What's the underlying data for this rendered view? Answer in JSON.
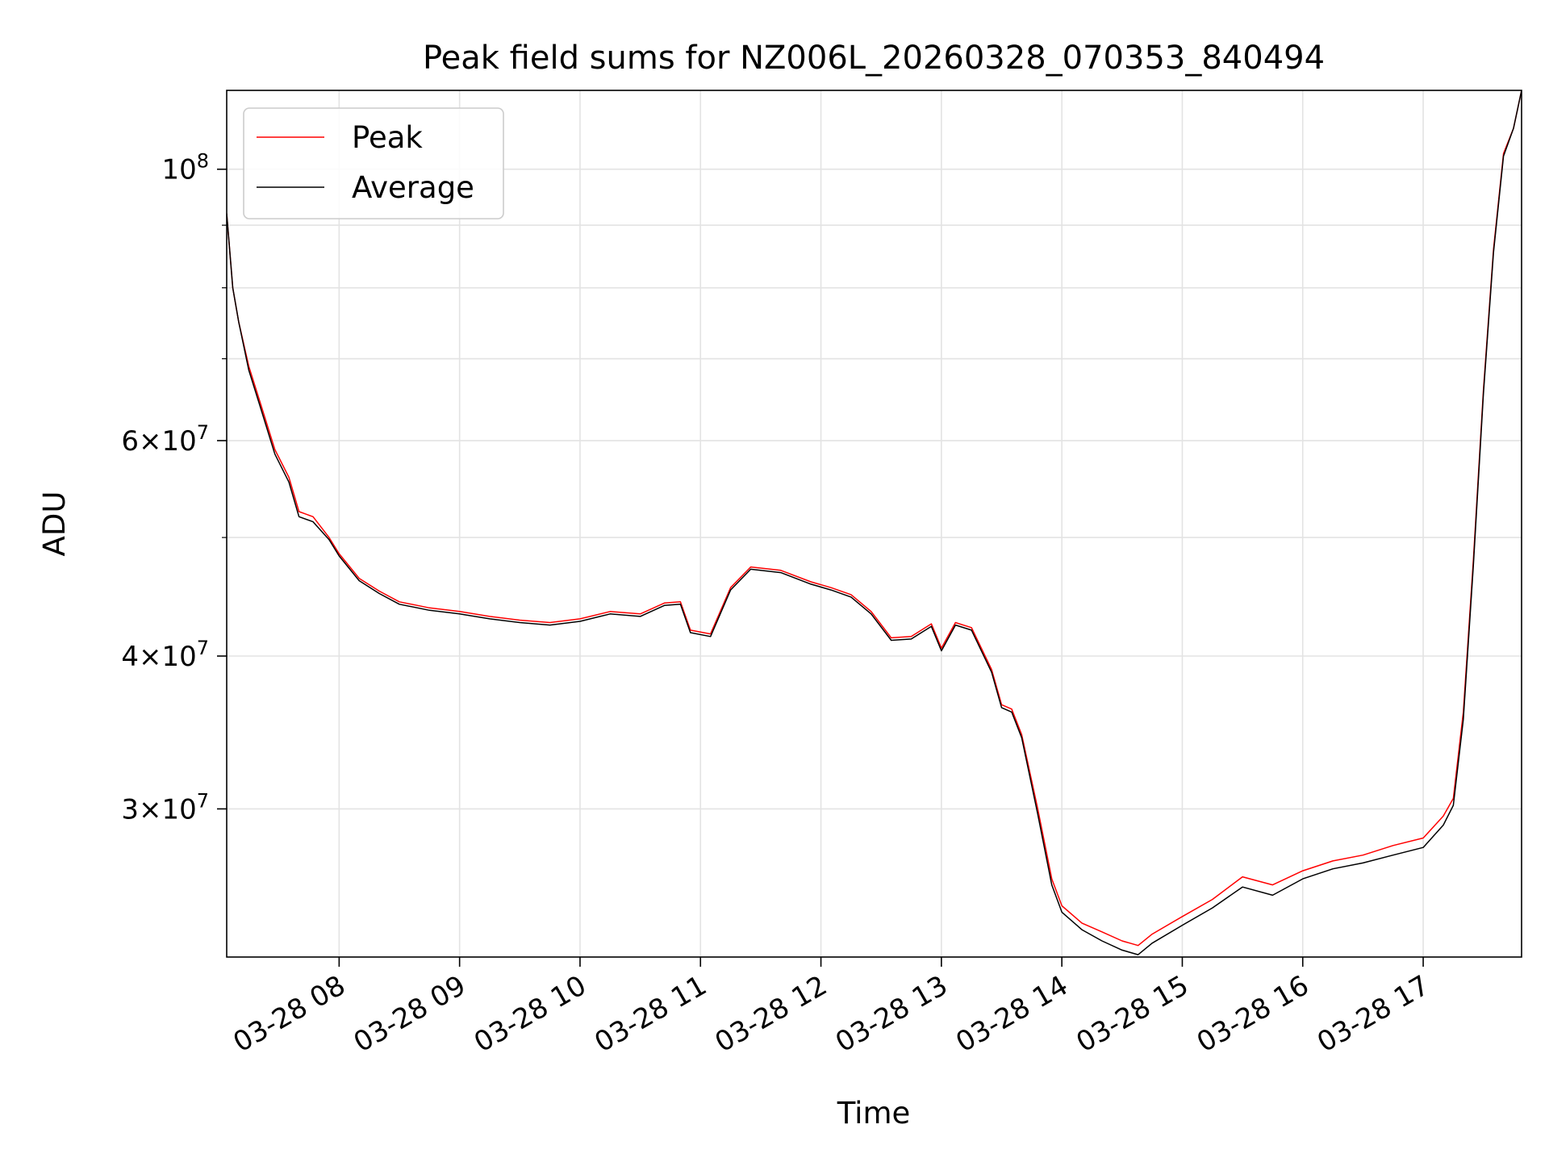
{
  "chart_data": {
    "type": "line",
    "title": "Peak field sums for NZ006L_20260328_070353_840494",
    "xlabel": "Time",
    "ylabel": "ADU",
    "yscale": "log",
    "grid": true,
    "legend_position": "top-left",
    "xlim": [
      "2026-03-28 07:04",
      "2026-03-28 17:49"
    ],
    "ylim": [
      22700000,
      116000000
    ],
    "x_ticks": [
      {
        "value": "2026-03-28 08:00",
        "label": "03-28 08"
      },
      {
        "value": "2026-03-28 09:00",
        "label": "03-28 09"
      },
      {
        "value": "2026-03-28 10:00",
        "label": "03-28 10"
      },
      {
        "value": "2026-03-28 11:00",
        "label": "03-28 11"
      },
      {
        "value": "2026-03-28 12:00",
        "label": "03-28 12"
      },
      {
        "value": "2026-03-28 13:00",
        "label": "03-28 13"
      },
      {
        "value": "2026-03-28 14:00",
        "label": "03-28 14"
      },
      {
        "value": "2026-03-28 15:00",
        "label": "03-28 15"
      },
      {
        "value": "2026-03-28 16:00",
        "label": "03-28 16"
      },
      {
        "value": "2026-03-28 17:00",
        "label": "03-28 17"
      }
    ],
    "y_ticks": [
      {
        "value": 30000000,
        "base": "3",
        "exp": "7"
      },
      {
        "value": 40000000,
        "base": "4",
        "exp": "7"
      },
      {
        "value": 60000000,
        "base": "6",
        "exp": "7"
      },
      {
        "value": 100000000,
        "base": "10",
        "exp": "8"
      }
    ],
    "y_minor_ticks": [
      50000000,
      70000000,
      80000000,
      90000000
    ],
    "series": [
      {
        "name": "Peak",
        "color": "#ff0000",
        "x": [
          "2026-03-28 07:04",
          "2026-03-28 07:07",
          "2026-03-28 07:10",
          "2026-03-28 07:15",
          "2026-03-28 07:20",
          "2026-03-28 07:28",
          "2026-03-28 07:35",
          "2026-03-28 07:40",
          "2026-03-28 07:47",
          "2026-03-28 07:55",
          "2026-03-28 08:00",
          "2026-03-28 08:10",
          "2026-03-28 08:20",
          "2026-03-28 08:30",
          "2026-03-28 08:45",
          "2026-03-28 09:00",
          "2026-03-28 09:15",
          "2026-03-28 09:30",
          "2026-03-28 09:45",
          "2026-03-28 10:00",
          "2026-03-28 10:15",
          "2026-03-28 10:30",
          "2026-03-28 10:42",
          "2026-03-28 10:50",
          "2026-03-28 10:55",
          "2026-03-28 11:05",
          "2026-03-28 11:15",
          "2026-03-28 11:25",
          "2026-03-28 11:40",
          "2026-03-28 11:55",
          "2026-03-28 12:05",
          "2026-03-28 12:15",
          "2026-03-28 12:25",
          "2026-03-28 12:35",
          "2026-03-28 12:45",
          "2026-03-28 12:55",
          "2026-03-28 13:00",
          "2026-03-28 13:07",
          "2026-03-28 13:15",
          "2026-03-28 13:25",
          "2026-03-28 13:30",
          "2026-03-28 13:35",
          "2026-03-28 13:40",
          "2026-03-28 13:48",
          "2026-03-28 13:55",
          "2026-03-28 14:00",
          "2026-03-28 14:10",
          "2026-03-28 14:20",
          "2026-03-28 14:30",
          "2026-03-28 14:38",
          "2026-03-28 14:45",
          "2026-03-28 15:00",
          "2026-03-28 15:15",
          "2026-03-28 15:30",
          "2026-03-28 15:45",
          "2026-03-28 16:00",
          "2026-03-28 16:15",
          "2026-03-28 16:30",
          "2026-03-28 16:45",
          "2026-03-28 17:00",
          "2026-03-28 17:10",
          "2026-03-28 17:15",
          "2026-03-28 17:20",
          "2026-03-28 17:25",
          "2026-03-28 17:30",
          "2026-03-28 17:35",
          "2026-03-28 17:40",
          "2026-03-28 17:45",
          "2026-03-28 17:49"
        ],
        "y": [
          92000000,
          80000000,
          75000000,
          69000000,
          65000000,
          59000000,
          56000000,
          52500000,
          52000000,
          50000000,
          48500000,
          46300000,
          45200000,
          44300000,
          43800000,
          43500000,
          43100000,
          42800000,
          42600000,
          42900000,
          43500000,
          43300000,
          44200000,
          44300000,
          42000000,
          41700000,
          45500000,
          47300000,
          47000000,
          46000000,
          45500000,
          44900000,
          43500000,
          41400000,
          41500000,
          42500000,
          40600000,
          42600000,
          42200000,
          39000000,
          36500000,
          36200000,
          34500000,
          30000000,
          26300000,
          25000000,
          24200000,
          23800000,
          23400000,
          23200000,
          23700000,
          24500000,
          25300000,
          26400000,
          26000000,
          26700000,
          27200000,
          27500000,
          28000000,
          28400000,
          29600000,
          30600000,
          36000000,
          48000000,
          66000000,
          86000000,
          103000000,
          108000000,
          116000000
        ]
      },
      {
        "name": "Average",
        "color": "#000000",
        "x": [
          "2026-03-28 07:04",
          "2026-03-28 07:07",
          "2026-03-28 07:10",
          "2026-03-28 07:15",
          "2026-03-28 07:20",
          "2026-03-28 07:28",
          "2026-03-28 07:35",
          "2026-03-28 07:40",
          "2026-03-28 07:47",
          "2026-03-28 07:55",
          "2026-03-28 08:00",
          "2026-03-28 08:10",
          "2026-03-28 08:20",
          "2026-03-28 08:30",
          "2026-03-28 08:45",
          "2026-03-28 09:00",
          "2026-03-28 09:15",
          "2026-03-28 09:30",
          "2026-03-28 09:45",
          "2026-03-28 10:00",
          "2026-03-28 10:15",
          "2026-03-28 10:30",
          "2026-03-28 10:42",
          "2026-03-28 10:50",
          "2026-03-28 10:55",
          "2026-03-28 11:05",
          "2026-03-28 11:15",
          "2026-03-28 11:25",
          "2026-03-28 11:40",
          "2026-03-28 11:55",
          "2026-03-28 12:05",
          "2026-03-28 12:15",
          "2026-03-28 12:25",
          "2026-03-28 12:35",
          "2026-03-28 12:45",
          "2026-03-28 12:55",
          "2026-03-28 13:00",
          "2026-03-28 13:07",
          "2026-03-28 13:15",
          "2026-03-28 13:25",
          "2026-03-28 13:30",
          "2026-03-28 13:35",
          "2026-03-28 13:40",
          "2026-03-28 13:48",
          "2026-03-28 13:55",
          "2026-03-28 14:00",
          "2026-03-28 14:10",
          "2026-03-28 14:20",
          "2026-03-28 14:30",
          "2026-03-28 14:38",
          "2026-03-28 14:45",
          "2026-03-28 15:00",
          "2026-03-28 15:15",
          "2026-03-28 15:30",
          "2026-03-28 15:45",
          "2026-03-28 16:00",
          "2026-03-28 16:15",
          "2026-03-28 16:30",
          "2026-03-28 16:45",
          "2026-03-28 17:00",
          "2026-03-28 17:10",
          "2026-03-28 17:15",
          "2026-03-28 17:20",
          "2026-03-28 17:25",
          "2026-03-28 17:30",
          "2026-03-28 17:35",
          "2026-03-28 17:40",
          "2026-03-28 17:45",
          "2026-03-28 17:49"
        ],
        "y": [
          92000000,
          80000000,
          75000000,
          68500000,
          64500000,
          58500000,
          55500000,
          52000000,
          51500000,
          49800000,
          48300000,
          46100000,
          45000000,
          44100000,
          43600000,
          43300000,
          42900000,
          42600000,
          42400000,
          42700000,
          43300000,
          43100000,
          44000000,
          44100000,
          41800000,
          41500000,
          45300000,
          47100000,
          46800000,
          45800000,
          45300000,
          44700000,
          43300000,
          41200000,
          41300000,
          42300000,
          40400000,
          42400000,
          42000000,
          38800000,
          36300000,
          36000000,
          34300000,
          29700000,
          26000000,
          24700000,
          23900000,
          23400000,
          23000000,
          22800000,
          23300000,
          24100000,
          24900000,
          25900000,
          25500000,
          26300000,
          26800000,
          27100000,
          27500000,
          27900000,
          29100000,
          30200000,
          35500000,
          47500000,
          65500000,
          85500000,
          102500000,
          108000000,
          116000000
        ]
      }
    ]
  }
}
